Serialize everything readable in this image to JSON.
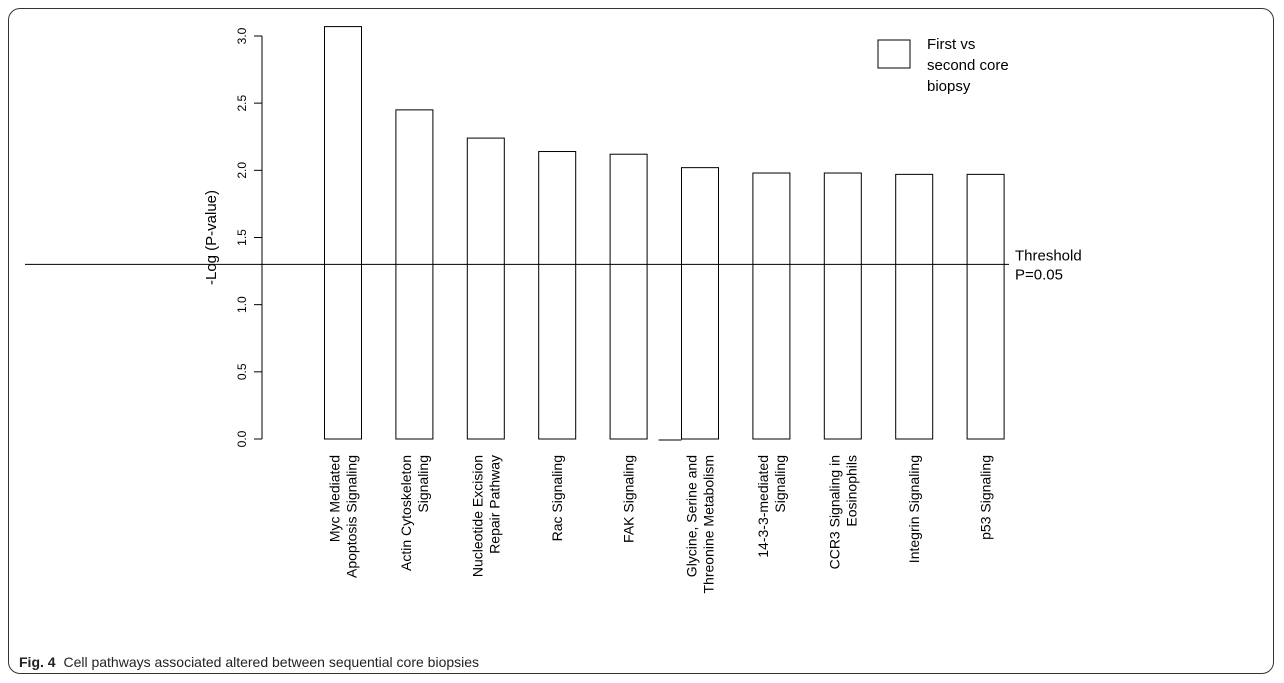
{
  "chart_data": {
    "type": "bar",
    "categories": [
      [
        "Myc Mediated",
        "Apoptosis Signaling"
      ],
      [
        "Actin Cytoskeleton",
        "Signaling"
      ],
      [
        "Nucleotide Excision",
        "Repair Pathway"
      ],
      [
        "Rac Signaling"
      ],
      [
        "FAK Signaling"
      ],
      [
        "Glycine, Serine and",
        "Threonine Metabolism"
      ],
      [
        "14-3-3-mediated",
        "Signaling"
      ],
      [
        "CCR3 Signaling in",
        "Eosinophils"
      ],
      [
        "Integrin Signaling"
      ],
      [
        "p53 Signaling"
      ]
    ],
    "series": [
      {
        "name": "First vs second core biopsy",
        "values": [
          3.07,
          2.45,
          2.24,
          2.14,
          2.12,
          2.02,
          1.98,
          1.98,
          1.97,
          1.97
        ]
      }
    ],
    "legend_lines": [
      "First vs",
      "second core",
      "biopsy"
    ],
    "legend_position": "top-right",
    "ylabel": "-Log (P-value)",
    "ylim": [
      0,
      3.0
    ],
    "yticks": [
      "0.0",
      "0.5",
      "1.0",
      "1.5",
      "2.0",
      "2.5",
      "3.0"
    ],
    "threshold": {
      "value": 1.3,
      "label_lines": [
        "Threshold",
        "P=0.05"
      ]
    },
    "grid": false,
    "colors": {
      "bar_fill": "#ffffff",
      "stroke": "#000000"
    }
  },
  "caption": {
    "label": "Fig. 4",
    "text": "Cell pathways associated altered between sequential core biopsies"
  }
}
